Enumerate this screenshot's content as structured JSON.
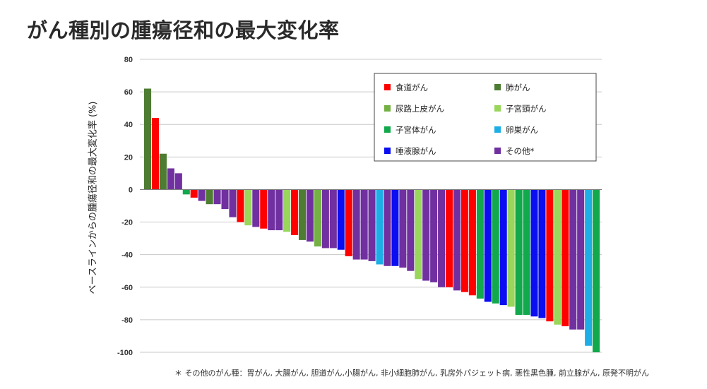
{
  "title": "がん種別の腫瘍径和の最大変化率",
  "footnote": "＊ その他のがん種：胃がん, 大腸がん, 胆道がん,小腸がん, 非小細胞肺がん, 乳房外パジェット病, 悪性黒色腫, 前立腺がん, 原発不明がん",
  "colors": {
    "食道がん": "#ff0000",
    "肺がん": "#4e7c32",
    "尿路上皮がん": "#74b043",
    "子宮頸がん": "#99d65b",
    "子宮体がん": "#12a84c",
    "卵巣がん": "#1eaee6",
    "唾液腺がん": "#0a0ef0",
    "その他*": "#7030a0"
  },
  "chart_data": {
    "type": "bar",
    "title": "",
    "xlabel": "",
    "ylabel": "ベースラインからの腫瘍径和の最大変化率 (%)",
    "ylim": [
      -100,
      80
    ],
    "yticks": [
      80,
      60,
      40,
      20,
      0,
      -20,
      -40,
      -60,
      -80,
      -100
    ],
    "grid": true,
    "legend_position": "top-right",
    "legend": [
      "食道がん",
      "肺がん",
      "尿路上皮がん",
      "子宮頸がん",
      "子宮体がん",
      "卵巣がん",
      "唾液腺がん",
      "その他*"
    ],
    "bars": [
      {
        "type": "肺がん",
        "value": 62
      },
      {
        "type": "食道がん",
        "value": 44
      },
      {
        "type": "肺がん",
        "value": 22
      },
      {
        "type": "その他*",
        "value": 13
      },
      {
        "type": "その他*",
        "value": 10
      },
      {
        "type": "子宮体がん",
        "value": -3
      },
      {
        "type": "食道がん",
        "value": -5
      },
      {
        "type": "その他*",
        "value": -7
      },
      {
        "type": "肺がん",
        "value": -9
      },
      {
        "type": "その他*",
        "value": -9
      },
      {
        "type": "その他*",
        "value": -12
      },
      {
        "type": "その他*",
        "value": -17
      },
      {
        "type": "食道がん",
        "value": -20
      },
      {
        "type": "子宮頸がん",
        "value": -22
      },
      {
        "type": "その他*",
        "value": -23
      },
      {
        "type": "食道がん",
        "value": -24
      },
      {
        "type": "その他*",
        "value": -25
      },
      {
        "type": "その他*",
        "value": -25
      },
      {
        "type": "子宮頸がん",
        "value": -26
      },
      {
        "type": "食道がん",
        "value": -28
      },
      {
        "type": "肺がん",
        "value": -31
      },
      {
        "type": "その他*",
        "value": -32
      },
      {
        "type": "尿路上皮がん",
        "value": -35
      },
      {
        "type": "その他*",
        "value": -36
      },
      {
        "type": "その他*",
        "value": -36
      },
      {
        "type": "唾液腺がん",
        "value": -37
      },
      {
        "type": "食道がん",
        "value": -41
      },
      {
        "type": "その他*",
        "value": -43
      },
      {
        "type": "その他*",
        "value": -43
      },
      {
        "type": "その他*",
        "value": -44
      },
      {
        "type": "卵巣がん",
        "value": -46
      },
      {
        "type": "その他*",
        "value": -47
      },
      {
        "type": "唾液腺がん",
        "value": -47
      },
      {
        "type": "その他*",
        "value": -48
      },
      {
        "type": "その他*",
        "value": -50
      },
      {
        "type": "子宮頸がん",
        "value": -55
      },
      {
        "type": "その他*",
        "value": -56
      },
      {
        "type": "その他*",
        "value": -57
      },
      {
        "type": "その他*",
        "value": -60
      },
      {
        "type": "食道がん",
        "value": -60
      },
      {
        "type": "その他*",
        "value": -62
      },
      {
        "type": "食道がん",
        "value": -63
      },
      {
        "type": "食道がん",
        "value": -65
      },
      {
        "type": "子宮体がん",
        "value": -67
      },
      {
        "type": "唾液腺がん",
        "value": -69
      },
      {
        "type": "子宮体がん",
        "value": -70
      },
      {
        "type": "唾液腺がん",
        "value": -71
      },
      {
        "type": "子宮頸がん",
        "value": -72
      },
      {
        "type": "子宮体がん",
        "value": -77
      },
      {
        "type": "子宮体がん",
        "value": -77
      },
      {
        "type": "唾液腺がん",
        "value": -78
      },
      {
        "type": "唾液腺がん",
        "value": -79
      },
      {
        "type": "食道がん",
        "value": -81
      },
      {
        "type": "子宮頸がん",
        "value": -83
      },
      {
        "type": "食道がん",
        "value": -84
      },
      {
        "type": "その他*",
        "value": -86
      },
      {
        "type": "その他*",
        "value": -86
      },
      {
        "type": "卵巣がん",
        "value": -96
      },
      {
        "type": "子宮体がん",
        "value": -100
      }
    ]
  }
}
